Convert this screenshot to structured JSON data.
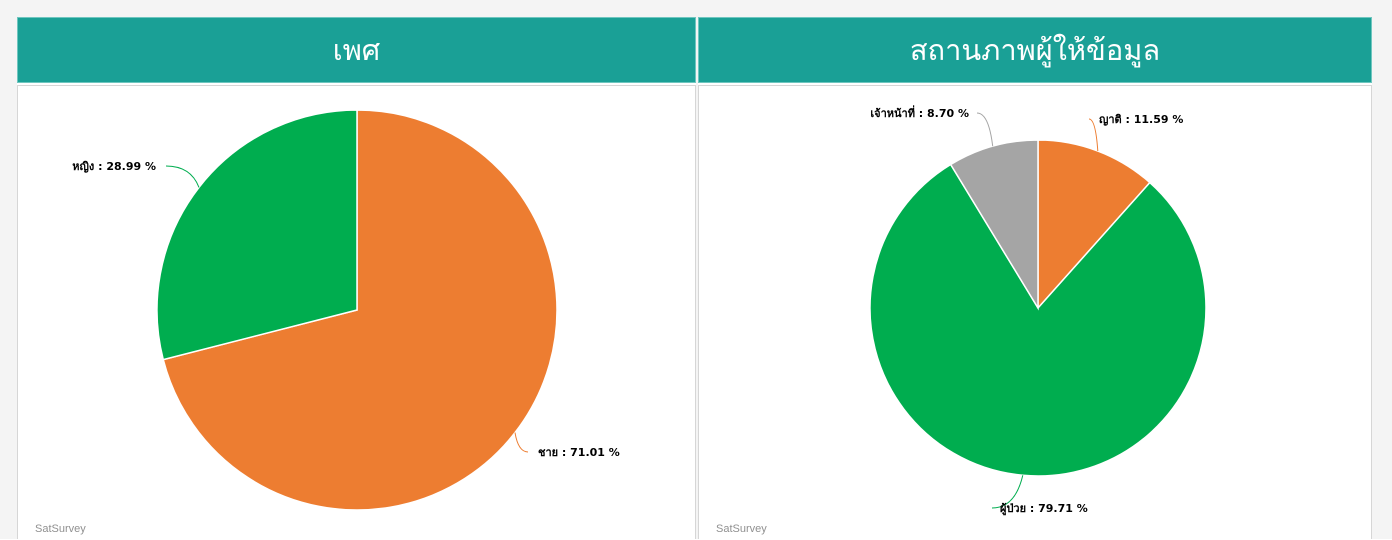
{
  "charts": [
    {
      "title": "เพศ",
      "credit": "SatSurvey",
      "chart_data": {
        "type": "pie",
        "title": "เพศ",
        "slices": [
          {
            "label": "ชาย",
            "value": 71.01,
            "display": "ชาย : 71.01 %",
            "color": "#ed7d31"
          },
          {
            "label": "หญิง",
            "value": 28.99,
            "display": "หญิง : 28.99 %",
            "color": "#00ad4f"
          }
        ]
      }
    },
    {
      "title": "สถานภาพผู้ให้ข้อมูล",
      "credit": "SatSurvey",
      "chart_data": {
        "type": "pie",
        "title": "สถานภาพผู้ให้ข้อมูล",
        "slices": [
          {
            "label": "ญาติ",
            "value": 11.59,
            "display": "ญาติ : 11.59 %",
            "color": "#ed7d31"
          },
          {
            "label": "ผู้ป่วย",
            "value": 79.71,
            "display": "ผู้ป่วย : 79.71 %",
            "color": "#00ad4f"
          },
          {
            "label": "เจ้าหน้าที่",
            "value": 8.7,
            "display": "เจ้าหน้าที่ : 8.70 %",
            "color": "#a5a5a5"
          }
        ]
      }
    }
  ]
}
